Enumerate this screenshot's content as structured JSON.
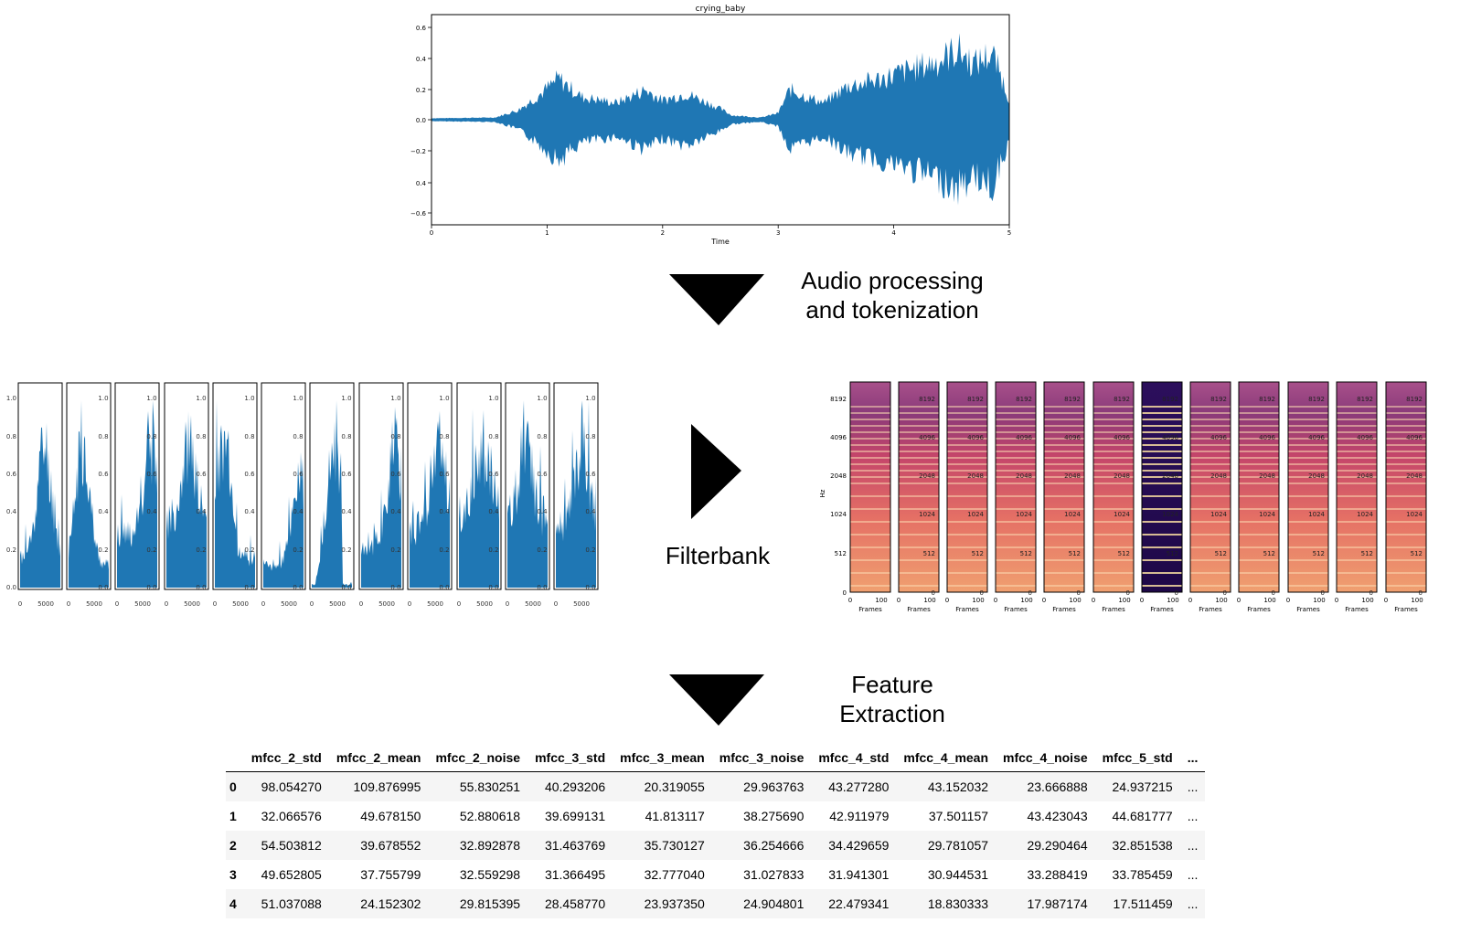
{
  "waveform": {
    "title": "crying_baby",
    "xlabel": "Time",
    "xticks": [
      "0",
      "1",
      "2",
      "3",
      "4",
      "5"
    ],
    "yticks": [
      "0.6",
      "0.4",
      "0.2",
      "0.0",
      "−0.2",
      "0.4",
      "−0.6"
    ],
    "color": "#1f77b4"
  },
  "steps": {
    "step1_line1": "Audio processing",
    "step1_line2": "and tokenization",
    "step2": "Filterbank",
    "step3_line1": "Feature",
    "step3_line2": "Extraction"
  },
  "histograms": {
    "count": 12,
    "yticks": [
      "1.0",
      "0.8",
      "0.6",
      "0.4",
      "0.2",
      "0.0"
    ],
    "xticks": [
      "0",
      "5000"
    ],
    "color": "#1f77b4"
  },
  "spectrograms": {
    "count": 12,
    "ylabel": "Hz",
    "yticks": [
      "8192",
      "4096",
      "2048",
      "1024",
      "512",
      "0"
    ],
    "xticks": [
      "0",
      "100"
    ],
    "xlabel": "Frames"
  },
  "table": {
    "columns": [
      "mfcc_2_std",
      "mfcc_2_mean",
      "mfcc_2_noise",
      "mfcc_3_std",
      "mfcc_3_mean",
      "mfcc_3_noise",
      "mfcc_4_std",
      "mfcc_4_mean",
      "mfcc_4_noise",
      "mfcc_5_std",
      "..."
    ],
    "rows": [
      {
        "index": "0",
        "cells": [
          "98.054270",
          "109.876995",
          "55.830251",
          "40.293206",
          "20.319055",
          "29.963763",
          "43.277280",
          "43.152032",
          "23.666888",
          "24.937215",
          "..."
        ]
      },
      {
        "index": "1",
        "cells": [
          "32.066576",
          "49.678150",
          "52.880618",
          "39.699131",
          "41.813117",
          "38.275690",
          "42.911979",
          "37.501157",
          "43.423043",
          "44.681777",
          "..."
        ]
      },
      {
        "index": "2",
        "cells": [
          "54.503812",
          "39.678552",
          "32.892878",
          "31.463769",
          "35.730127",
          "36.254666",
          "34.429659",
          "29.781057",
          "29.290464",
          "32.851538",
          "..."
        ]
      },
      {
        "index": "3",
        "cells": [
          "49.652805",
          "37.755799",
          "32.559298",
          "31.366495",
          "32.777040",
          "31.027833",
          "31.941301",
          "30.944531",
          "33.288419",
          "33.785459",
          "..."
        ]
      },
      {
        "index": "4",
        "cells": [
          "51.037088",
          "24.152302",
          "29.815395",
          "28.458770",
          "23.937350",
          "24.904801",
          "22.479341",
          "18.830333",
          "17.987174",
          "17.511459",
          "..."
        ]
      }
    ]
  }
}
